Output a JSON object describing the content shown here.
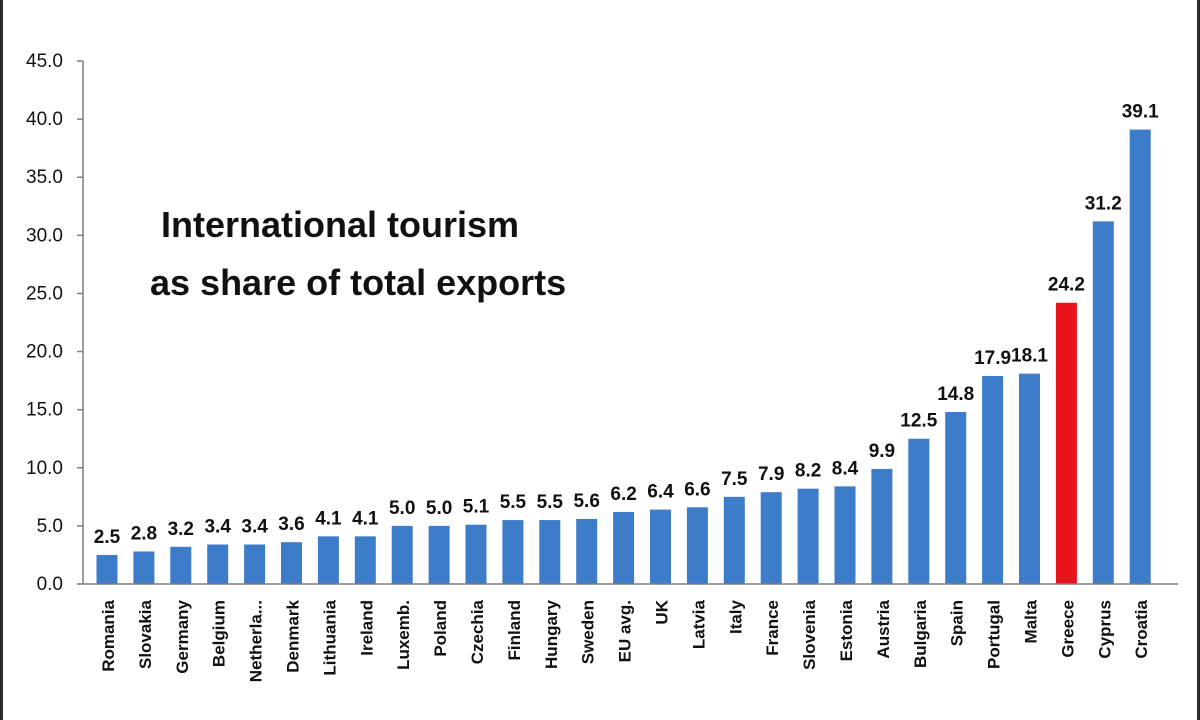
{
  "chart_data": {
    "type": "bar",
    "title_lines": [
      "International tourism",
      "as share of total exports"
    ],
    "categories": [
      "Romania",
      "Slovakia",
      "Germany",
      "Belgium",
      "Netherla...",
      "Denmark",
      "Lithuania",
      "Ireland",
      "Luxemb.",
      "Poland",
      "Czechia",
      "Finland",
      "Hungary",
      "Sweden",
      "EU avg.",
      "UK",
      "Latvia",
      "Italy",
      "France",
      "Slovenia",
      "Estonia",
      "Austria",
      "Bulgaria",
      "Spain",
      "Portugal",
      "Malta",
      "Greece",
      "Cyprus",
      "Croatia"
    ],
    "values": [
      2.5,
      2.8,
      3.2,
      3.4,
      3.4,
      3.6,
      4.1,
      4.1,
      5.0,
      5.0,
      5.1,
      5.5,
      5.5,
      5.6,
      6.2,
      6.4,
      6.6,
      7.5,
      7.9,
      8.2,
      8.4,
      9.9,
      12.5,
      14.8,
      17.9,
      18.1,
      24.2,
      31.2,
      39.1
    ],
    "value_labels": [
      "2.5",
      "2.8",
      "3.2",
      "3.4",
      "3.4",
      "3.6",
      "4.1",
      "4.1",
      "5.0",
      "5.0",
      "5.1",
      "5.5",
      "5.5",
      "5.6",
      "6.2",
      "6.4",
      "6.6",
      "7.5",
      "7.9",
      "8.2",
      "8.4",
      "9.9",
      "12.5",
      "14.8",
      "17.9",
      "18.1",
      "24.2",
      "31.2",
      "39.1"
    ],
    "highlight": "Greece",
    "colors": {
      "bar": "#3D7CC9",
      "highlight": "#E8131B",
      "text": "#111111",
      "axis": "#7f7f7f"
    },
    "ylim": [
      0,
      45
    ],
    "yticks": [
      "0.0",
      "5.0",
      "10.0",
      "15.0",
      "20.0",
      "25.0",
      "30.0",
      "35.0",
      "40.0",
      "45.0"
    ],
    "xlabel": "",
    "ylabel": "",
    "grid": false,
    "legend": "none"
  }
}
